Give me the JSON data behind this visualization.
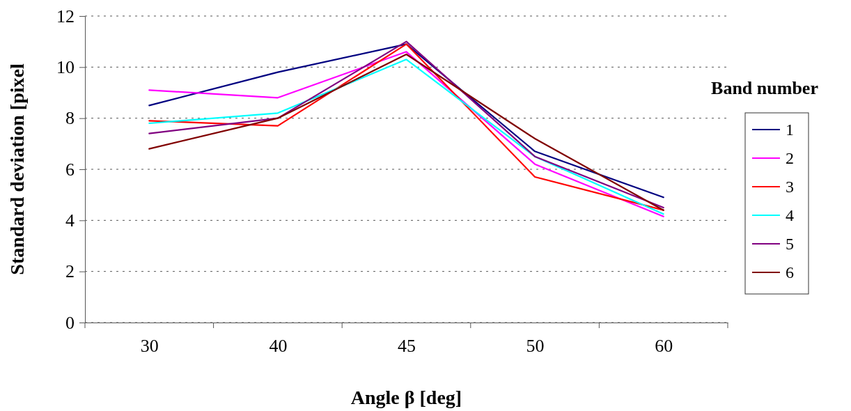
{
  "chart_data": {
    "type": "line",
    "xlabel": "Angle β [deg]",
    "ylabel": "Standard deviation [pixel",
    "legend_title": "Band number",
    "categories": [
      "30",
      "40",
      "45",
      "50",
      "60"
    ],
    "ylim": [
      0,
      12
    ],
    "yticks": [
      0,
      2,
      4,
      6,
      8,
      10,
      12
    ],
    "grid": "y",
    "legend": "right",
    "marker": "none",
    "line_style": "solid",
    "series": [
      {
        "name": "1",
        "color": "#000080",
        "values": [
          8.5,
          9.8,
          10.9,
          6.7,
          4.9
        ]
      },
      {
        "name": "2",
        "color": "#ff00ff",
        "values": [
          9.1,
          8.8,
          10.6,
          6.2,
          4.15
        ]
      },
      {
        "name": "3",
        "color": "#ff0000",
        "values": [
          7.9,
          7.7,
          10.9,
          5.7,
          4.4
        ]
      },
      {
        "name": "4",
        "color": "#00ffff",
        "values": [
          7.8,
          8.2,
          10.3,
          6.5,
          4.25
        ]
      },
      {
        "name": "5",
        "color": "#800080",
        "values": [
          7.4,
          8.0,
          11.0,
          6.5,
          4.5
        ]
      },
      {
        "name": "6",
        "color": "#800000",
        "values": [
          6.8,
          8.0,
          10.5,
          7.2,
          4.4
        ]
      }
    ]
  }
}
